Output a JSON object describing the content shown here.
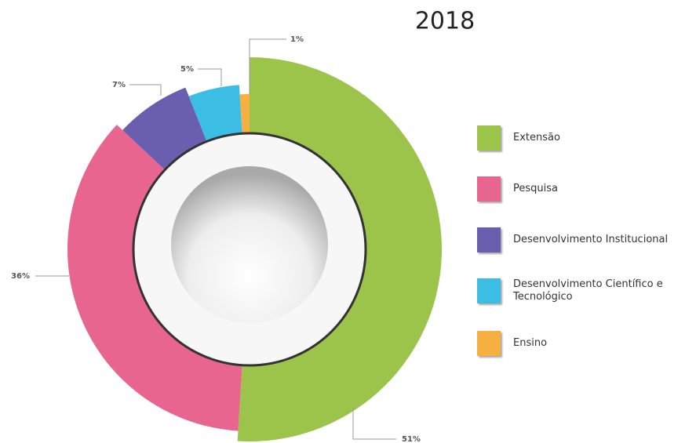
{
  "chart_data": {
    "type": "pie",
    "title": "2018",
    "categories": [
      "Extensão",
      "Pesquisa",
      "Desenvolvimento Institucional",
      "Desenvolvimento Científico e Tecnológico",
      "Ensino"
    ],
    "values": [
      51,
      36,
      7,
      5,
      1
    ],
    "value_labels": [
      "51%",
      "36%",
      "7%",
      "5%",
      "1%"
    ],
    "colors": [
      "#9dc44a",
      "#e8658f",
      "#6a5fae",
      "#3bbde4",
      "#f5b041"
    ],
    "legend": "right"
  }
}
